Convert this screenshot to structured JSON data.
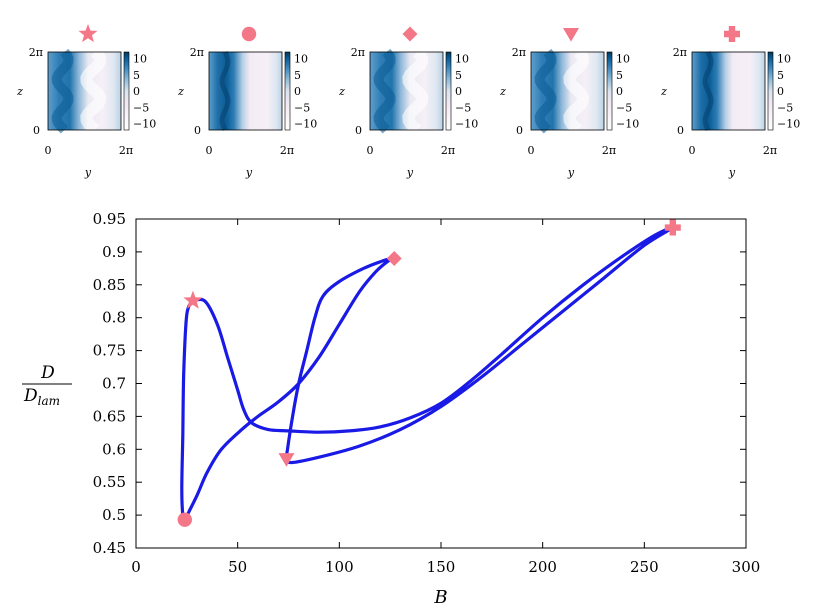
{
  "chart_data": [
    {
      "type": "line",
      "title": "",
      "xlabel": "B",
      "ylabel": {
        "numerator": "D",
        "denominator_base": "D",
        "denominator_sub": "lam"
      },
      "xlim": [
        0,
        300
      ],
      "ylim": [
        0.45,
        0.95
      ],
      "xticks": [
        "0",
        "50",
        "100",
        "150",
        "200",
        "250",
        "300"
      ],
      "yticks": [
        "0.45",
        "0.5",
        "0.55",
        "0.6",
        "0.65",
        "0.7",
        "0.75",
        "0.8",
        "0.85",
        "0.9",
        "0.95"
      ],
      "grid": false,
      "line_color": "#1a1ae6",
      "marker_color": "#f47788",
      "series": [
        {
          "points": [
            [
              28,
              0.826
            ],
            [
              25,
              0.805
            ],
            [
              23.5,
              0.72
            ],
            [
              23,
              0.62
            ],
            [
              22.5,
              0.54
            ],
            [
              23,
              0.5
            ],
            [
              24,
              0.493
            ],
            [
              26,
              0.505
            ],
            [
              30,
              0.53
            ],
            [
              35,
              0.565
            ],
            [
              42,
              0.6
            ],
            [
              52,
              0.63
            ],
            [
              60,
              0.65
            ],
            [
              70,
              0.672
            ],
            [
              80,
              0.7
            ],
            [
              90,
              0.74
            ],
            [
              100,
              0.79
            ],
            [
              110,
              0.84
            ],
            [
              118,
              0.87
            ],
            [
              124,
              0.886
            ],
            [
              127,
              0.89
            ],
            [
              123,
              0.888
            ],
            [
              112,
              0.875
            ],
            [
              100,
              0.855
            ],
            [
              92,
              0.833
            ],
            [
              88,
              0.8
            ],
            [
              84,
              0.75
            ],
            [
              80,
              0.7
            ],
            [
              77,
              0.65
            ],
            [
              74.5,
              0.6
            ],
            [
              74,
              0.585
            ],
            [
              77,
              0.58
            ],
            [
              90,
              0.588
            ],
            [
              110,
              0.605
            ],
            [
              130,
              0.63
            ],
            [
              150,
              0.665
            ],
            [
              170,
              0.71
            ],
            [
              190,
              0.76
            ],
            [
              210,
              0.81
            ],
            [
              230,
              0.86
            ],
            [
              250,
              0.91
            ],
            [
              264,
              0.937
            ],
            [
              255,
              0.925
            ],
            [
              240,
              0.895
            ],
            [
              220,
              0.85
            ],
            [
              200,
              0.8
            ],
            [
              180,
              0.745
            ],
            [
              165,
              0.705
            ],
            [
              150,
              0.67
            ],
            [
              135,
              0.648
            ],
            [
              120,
              0.634
            ],
            [
              105,
              0.628
            ],
            [
              90,
              0.626
            ],
            [
              75,
              0.628
            ],
            [
              65,
              0.63
            ],
            [
              57,
              0.64
            ],
            [
              53,
              0.66
            ],
            [
              50,
              0.69
            ],
            [
              45,
              0.74
            ],
            [
              40,
              0.79
            ],
            [
              34,
              0.825
            ],
            [
              28,
              0.826
            ]
          ]
        }
      ],
      "markers": [
        {
          "shape": "star",
          "x": 28,
          "y": 0.826
        },
        {
          "shape": "circle",
          "x": 24,
          "y": 0.493
        },
        {
          "shape": "diamond",
          "x": 127,
          "y": 0.89
        },
        {
          "shape": "triangle-down",
          "x": 74,
          "y": 0.585
        },
        {
          "shape": "plus",
          "x": 264,
          "y": 0.937
        }
      ]
    },
    {
      "type": "heatmap",
      "panels": [
        {
          "marker": "star",
          "pattern": "wavy"
        },
        {
          "marker": "circle",
          "pattern": "stripe"
        },
        {
          "marker": "diamond",
          "pattern": "wavy"
        },
        {
          "marker": "triangle-down",
          "pattern": "wavy"
        },
        {
          "marker": "plus",
          "pattern": "stripe"
        }
      ],
      "xlabel": "y",
      "ylabel": "z",
      "x_ticks": [
        "0",
        "2π"
      ],
      "y_ticks": [
        "0",
        "2π"
      ],
      "colorbar_ticks": [
        "10",
        "5",
        "0",
        "−5",
        "−10"
      ],
      "colorbar_range": [
        -12,
        12
      ],
      "colormap": [
        "#ffffff",
        "#f1e8f2",
        "#d9e3ef",
        "#8fbbd9",
        "#3b86bd",
        "#0a5d96",
        "#023858"
      ]
    }
  ]
}
